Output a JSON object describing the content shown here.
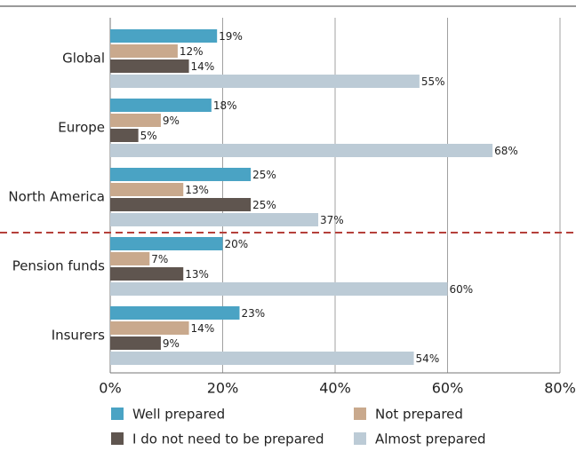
{
  "chart_data": {
    "type": "bar",
    "orientation": "horizontal",
    "categories": [
      "Global",
      "Europe",
      "North America",
      "Pension funds",
      "Insurers"
    ],
    "series": [
      {
        "name": "Well prepared",
        "color": "#4aa3c4",
        "values": [
          19,
          18,
          25,
          20,
          23
        ],
        "value_labels": [
          "19%",
          "18%",
          "25%",
          "20%",
          "23%"
        ]
      },
      {
        "name": "Not prepared",
        "color": "#c9a98d",
        "values": [
          12,
          9,
          13,
          7,
          14
        ],
        "value_labels": [
          "12%",
          "9%",
          "13%",
          "7%",
          "14%"
        ]
      },
      {
        "name": "I do not need to be prepared",
        "color": "#5f554f",
        "values": [
          14,
          5,
          25,
          13,
          9
        ],
        "value_labels": [
          "14%",
          "5%",
          "25%",
          "13%",
          "9%"
        ]
      },
      {
        "name": "Almost prepared",
        "color": "#bccbd6",
        "values": [
          55,
          68,
          37,
          60,
          54
        ],
        "value_labels": [
          "55%",
          "68%",
          "37%",
          "60%",
          "54%"
        ]
      }
    ],
    "xlim": [
      0,
      80
    ],
    "xticks": [
      {
        "value": 0,
        "label": "0%"
      },
      {
        "value": 20,
        "label": "20%"
      },
      {
        "value": 40,
        "label": "40%"
      },
      {
        "value": 60,
        "label": "60%"
      },
      {
        "value": 80,
        "label": "80%"
      }
    ],
    "grid": true,
    "legend": "bottom"
  }
}
